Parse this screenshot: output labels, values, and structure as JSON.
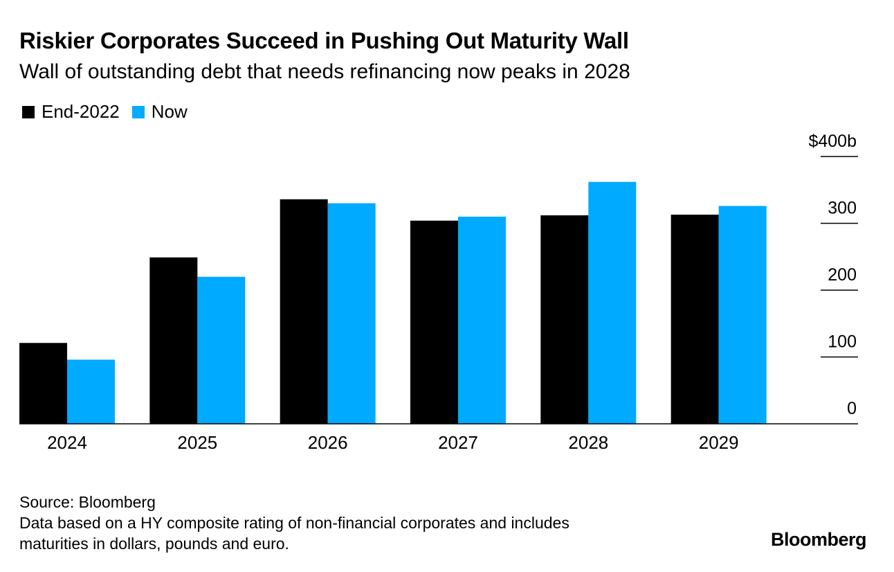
{
  "header": {
    "title": "Riskier Corporates Succeed in Pushing Out Maturity Wall",
    "subtitle": "Wall of outstanding debt that needs refinancing now peaks in 2028"
  },
  "footer": {
    "source": "Source: Bloomberg",
    "note_line1": "Data based on a HY composite rating of non-financial corporates and includes",
    "note_line2": "maturities in dollars, pounds and euro.",
    "brand": "Bloomberg"
  },
  "colors": {
    "series_end2022": "#000000",
    "series_now": "#00aaff"
  },
  "chart_data": {
    "type": "bar",
    "title": "Riskier Corporates Succeed in Pushing Out Maturity Wall",
    "subtitle": "Wall of outstanding debt that needs refinancing now peaks in 2028",
    "xlabel": "",
    "ylabel": "",
    "categories": [
      "2024",
      "2025",
      "2026",
      "2027",
      "2028",
      "2029"
    ],
    "series": [
      {
        "name": "End-2022",
        "color": "#000000",
        "values": [
          121,
          249,
          336,
          304,
          312,
          313
        ]
      },
      {
        "name": "Now",
        "color": "#00aaff",
        "values": [
          96,
          220,
          330,
          310,
          362,
          326
        ]
      }
    ],
    "ylim": [
      0,
      400
    ],
    "yticks": [
      0,
      100,
      200,
      300,
      400
    ],
    "ytick_labels": [
      "0",
      "100",
      "200",
      "300",
      "$400b"
    ],
    "grid": false,
    "y_axis_position": "right",
    "legend_position": "top-left"
  }
}
